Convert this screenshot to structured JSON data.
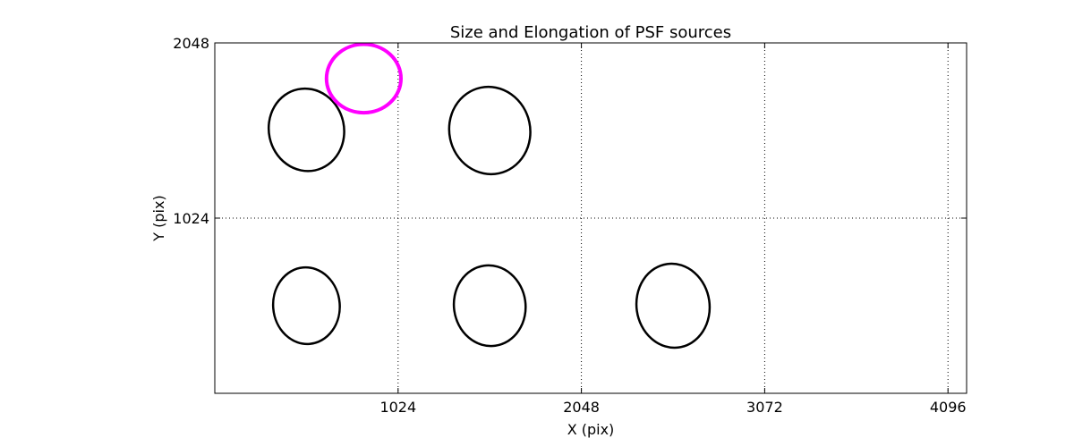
{
  "chart_data": {
    "type": "scatter",
    "title": "Size and Elongation of PSF sources",
    "xlabel": "X (pix)",
    "ylabel": "Y (pix)",
    "xlim": [
      0,
      4200
    ],
    "ylim": [
      0,
      2048
    ],
    "x_ticks": [
      1024,
      2048,
      3072,
      4096
    ],
    "y_ticks": [
      1024,
      2048
    ],
    "grid": true,
    "series": [
      {
        "marker": "ellipse",
        "color": "#000000",
        "points": [
          {
            "x": 512,
            "y": 1540,
            "width": 420,
            "height": 484,
            "angle": -12
          },
          {
            "x": 1536,
            "y": 1536,
            "width": 452,
            "height": 512,
            "angle": -12
          },
          {
            "x": 512,
            "y": 512,
            "width": 372,
            "height": 448,
            "angle": -5
          },
          {
            "x": 1536,
            "y": 512,
            "width": 400,
            "height": 472,
            "angle": -8
          },
          {
            "x": 2560,
            "y": 512,
            "width": 408,
            "height": 492,
            "angle": -8
          }
        ]
      },
      {
        "marker": "ellipse",
        "color": "#ff00ff",
        "points": [
          {
            "x": 832,
            "y": 1840,
            "width": 416,
            "height": 400,
            "angle": 0
          }
        ]
      }
    ]
  }
}
